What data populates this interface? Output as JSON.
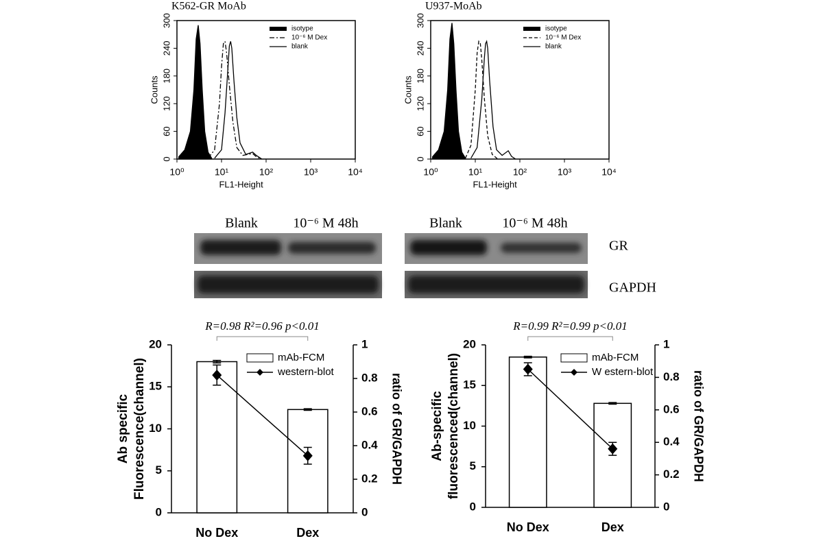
{
  "chart_data": [
    {
      "type": "line",
      "title": "K562-GR MoAb",
      "xlabel": "FL1-Height",
      "ylabel": "Counts",
      "xscale": "log",
      "xlim": [
        1,
        10000
      ],
      "xticks": [
        {
          "value": 1,
          "label": "10⁰"
        },
        {
          "value": 10,
          "label": "10¹"
        },
        {
          "value": 100,
          "label": "10²"
        },
        {
          "value": 1000,
          "label": "10³"
        },
        {
          "value": 10000,
          "label": "10⁴"
        }
      ],
      "ylim": [
        0,
        300
      ],
      "yticks": [
        0,
        60,
        120,
        180,
        240,
        300
      ],
      "legend": "upper right",
      "series": [
        {
          "name": "isotype",
          "color": "#000000",
          "style": "filled",
          "x": [
            1.1,
            1.5,
            2,
            2.4,
            2.7,
            3,
            3.3,
            3.7,
            4.2,
            5,
            6
          ],
          "values": [
            5,
            20,
            60,
            150,
            260,
            290,
            250,
            150,
            60,
            15,
            2
          ]
        },
        {
          "name": "10⁻⁶ M Dex",
          "color": "#000000",
          "style": "dashdot",
          "x": [
            5,
            7,
            9,
            10,
            11,
            12,
            13,
            15,
            18,
            22,
            30,
            50,
            60,
            80
          ],
          "values": [
            2,
            20,
            120,
            200,
            250,
            255,
            230,
            160,
            80,
            25,
            8,
            12,
            5,
            0
          ]
        },
        {
          "name": "blank",
          "color": "#000000",
          "style": "solid",
          "x": [
            7,
            10,
            12,
            14,
            15,
            16,
            17,
            19,
            22,
            26,
            35,
            50,
            60,
            80
          ],
          "values": [
            2,
            20,
            100,
            200,
            245,
            255,
            240,
            170,
            90,
            35,
            10,
            15,
            8,
            0
          ]
        }
      ]
    },
    {
      "type": "line",
      "title": "U937-MoAb",
      "xlabel": "FL1-Height",
      "ylabel": "Counts",
      "xscale": "log",
      "xlim": [
        1,
        10000
      ],
      "xticks": [
        {
          "value": 1,
          "label": "10⁰"
        },
        {
          "value": 10,
          "label": "10¹"
        },
        {
          "value": 100,
          "label": "10²"
        },
        {
          "value": 1000,
          "label": "10³"
        },
        {
          "value": 10000,
          "label": "10⁴"
        }
      ],
      "ylim": [
        0,
        300
      ],
      "yticks": [
        0,
        60,
        120,
        180,
        240,
        300
      ],
      "legend": "upper right",
      "series": [
        {
          "name": "isotype",
          "color": "#000000",
          "style": "filled",
          "x": [
            1.1,
            1.5,
            2,
            2.4,
            2.7,
            3,
            3.3,
            3.7,
            4.2,
            5,
            6
          ],
          "values": [
            5,
            20,
            60,
            150,
            260,
            295,
            250,
            150,
            60,
            15,
            2
          ]
        },
        {
          "name": "10⁻⁶ M Dex",
          "color": "#000000",
          "style": "dash",
          "x": [
            6,
            8,
            10,
            11,
            12,
            13,
            14,
            16,
            19,
            24,
            32
          ],
          "values": [
            2,
            30,
            150,
            230,
            255,
            250,
            215,
            130,
            50,
            10,
            0
          ]
        },
        {
          "name": "blank",
          "color": "#000000",
          "style": "solid",
          "x": [
            8,
            11,
            14,
            16,
            17,
            18,
            19,
            21,
            25,
            30,
            40,
            55,
            65,
            80
          ],
          "values": [
            2,
            25,
            130,
            220,
            250,
            255,
            240,
            170,
            70,
            20,
            8,
            18,
            6,
            0
          ]
        }
      ]
    },
    {
      "type": "bar",
      "categories": [
        "No Dex",
        "Dex"
      ],
      "ylabel": [
        "Ab specific",
        "Fluorescence(channel)"
      ],
      "y2label": "ratio of GR/GAPDH",
      "annotation": "R=0.98 R²=0.96 p<0.01",
      "ylim": [
        0,
        20
      ],
      "yticks": [
        0,
        5,
        10,
        15,
        20
      ],
      "y2lim": [
        0,
        1
      ],
      "y2ticks": [
        0,
        0.2,
        0.4,
        0.6,
        0.8,
        1
      ],
      "legend": "upper right",
      "series": [
        {
          "name": "mAb-FCM",
          "type": "bar",
          "color": "#ffffff",
          "values": [
            18,
            12.3
          ],
          "errors": [
            0.15,
            0.1
          ]
        },
        {
          "name": "western-blot",
          "type": "line",
          "axis": "y2",
          "color": "#000000",
          "values": [
            0.82,
            0.34
          ],
          "errors": [
            0.06,
            0.05
          ]
        }
      ]
    },
    {
      "type": "bar",
      "categories": [
        "No Dex",
        "Dex"
      ],
      "ylabel": [
        "Ab-specific",
        "fluorescenced(channel)"
      ],
      "y2label": "ratio of GR/GAPDH",
      "annotation": "R=0.99 R²=0.99 p<0.01",
      "ylim": [
        0,
        20
      ],
      "yticks": [
        0,
        5,
        10,
        15,
        20
      ],
      "y2lim": [
        0,
        1
      ],
      "y2ticks": [
        0,
        0.2,
        0.4,
        0.6,
        0.8,
        1
      ],
      "legend": "upper right",
      "series": [
        {
          "name": "mAb-FCM",
          "type": "bar",
          "color": "#ffffff",
          "values": [
            18.5,
            12.8
          ],
          "errors": [
            0.1,
            0.1
          ]
        },
        {
          "name": "W estern-blot",
          "type": "line",
          "axis": "y2",
          "color": "#000000",
          "values": [
            0.85,
            0.36
          ],
          "errors": [
            0.04,
            0.04
          ]
        }
      ]
    }
  ],
  "blot": {
    "columns": [
      "Blank",
      "10⁻⁶ M 48h",
      "Blank",
      "10⁻⁶ M 48h"
    ],
    "rows": [
      "GR",
      "GAPDH"
    ]
  }
}
